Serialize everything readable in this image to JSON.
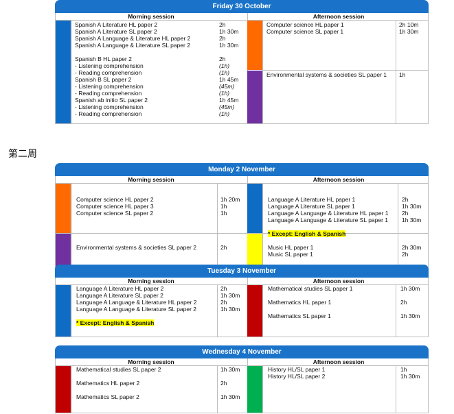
{
  "friday": {
    "title": "Friday 30 October",
    "morning_header": "Morning session",
    "afternoon_header": "Afternoon session",
    "am": [
      {
        "name": "Spanish A Literature HL paper 2",
        "dur": "2h"
      },
      {
        "name": "Spanish A Literature SL paper 2",
        "dur": "1h 30m"
      },
      {
        "name": "Spanish A Language & Literature HL paper 2",
        "dur": "2h"
      },
      {
        "name": "Spanish A Language & Literature SL paper 2",
        "dur": "1h 30m"
      },
      {
        "name": "Spanish B HL paper 2",
        "dur": "2h"
      },
      {
        "name": "- Listening comprehension",
        "dur": "(1h)"
      },
      {
        "name": "- Reading comprehension",
        "dur": "(1h)"
      },
      {
        "name": "Spanish B SL paper 2",
        "dur": "1h 45m"
      },
      {
        "name": "- Listening comprehension",
        "dur": "(45m)"
      },
      {
        "name": "- Reading comprehension",
        "dur": "(1h)"
      },
      {
        "name": "Spanish ab initio SL paper 2",
        "dur": "1h 45m"
      },
      {
        "name": "- Listening comprehension",
        "dur": "(45m)"
      },
      {
        "name": "- Reading comprehension",
        "dur": "(1h)"
      }
    ],
    "pm": [
      {
        "name": "Computer science HL paper 1",
        "dur": "2h 10m"
      },
      {
        "name": "Computer science SL paper 1",
        "dur": "1h 30m"
      },
      {
        "name": "Environmental systems & societies SL paper 1",
        "dur": "1h"
      }
    ]
  },
  "week_label": "第二周",
  "monday": {
    "title": "Monday 2 November",
    "morning_header": "Morning session",
    "afternoon_header": "Afternoon session",
    "am": [
      {
        "name": "Computer science HL paper 2",
        "dur": "1h 20m"
      },
      {
        "name": "Computer science HL paper 3",
        "dur": "1h"
      },
      {
        "name": "Computer science SL paper 2",
        "dur": "1h"
      },
      {
        "name": "Environmental systems & societies SL paper 2",
        "dur": "2h"
      }
    ],
    "pm": [
      {
        "name": "Language A Literature HL paper 1",
        "dur": "2h"
      },
      {
        "name": "Language A Literature SL paper 1",
        "dur": "1h 30m"
      },
      {
        "name": "Language A Language & Literature HL paper 1",
        "dur": "2h"
      },
      {
        "name": "Language A Language & Literature SL paper 1",
        "dur": "1h 30m"
      },
      {
        "name": "Music HL paper 1",
        "dur": "2h 30m"
      },
      {
        "name": "Music SL paper 1",
        "dur": "2h"
      }
    ],
    "except": "* Except: English & Spanish"
  },
  "tuesday": {
    "title": "Tuesday 3 November",
    "morning_header": "Morning session",
    "afternoon_header": "Afternoon session",
    "am": [
      {
        "name": "Language A Literature HL paper 2",
        "dur": "2h"
      },
      {
        "name": "Language A Literature SL paper 2",
        "dur": "1h 30m"
      },
      {
        "name": "Language A Language & Literature HL paper 2",
        "dur": "2h"
      },
      {
        "name": "Language A Language & Literature SL paper 2",
        "dur": "1h 30m"
      }
    ],
    "pm": [
      {
        "name": "Mathematical studies SL paper 1",
        "dur": "1h 30m"
      },
      {
        "name": "Mathematics HL paper 1",
        "dur": "2h"
      },
      {
        "name": "Mathematics SL paper 1",
        "dur": "1h 30m"
      }
    ],
    "except": "* Except: English & Spanish"
  },
  "wednesday": {
    "title": "Wednesday 4 November",
    "morning_header": "Morning session",
    "afternoon_header": "Afternoon session",
    "am": [
      {
        "name": "Mathematical studies SL paper 2",
        "dur": "1h 30m"
      },
      {
        "name": "Mathematics HL paper 2",
        "dur": "2h"
      },
      {
        "name": "Mathematics SL paper 2",
        "dur": "1h 30m"
      }
    ],
    "pm": [
      {
        "name": "History HL/SL paper 1",
        "dur": "1h"
      },
      {
        "name": "History HL/SL paper 2",
        "dur": "1h 30m"
      }
    ]
  },
  "colors": {
    "header_blue": "#1a73c9",
    "blue": "#0f6cc4",
    "orange": "#ff6a00",
    "purple": "#7030a0",
    "yellow": "#ffff00",
    "red": "#c00000",
    "green": "#00b050"
  }
}
